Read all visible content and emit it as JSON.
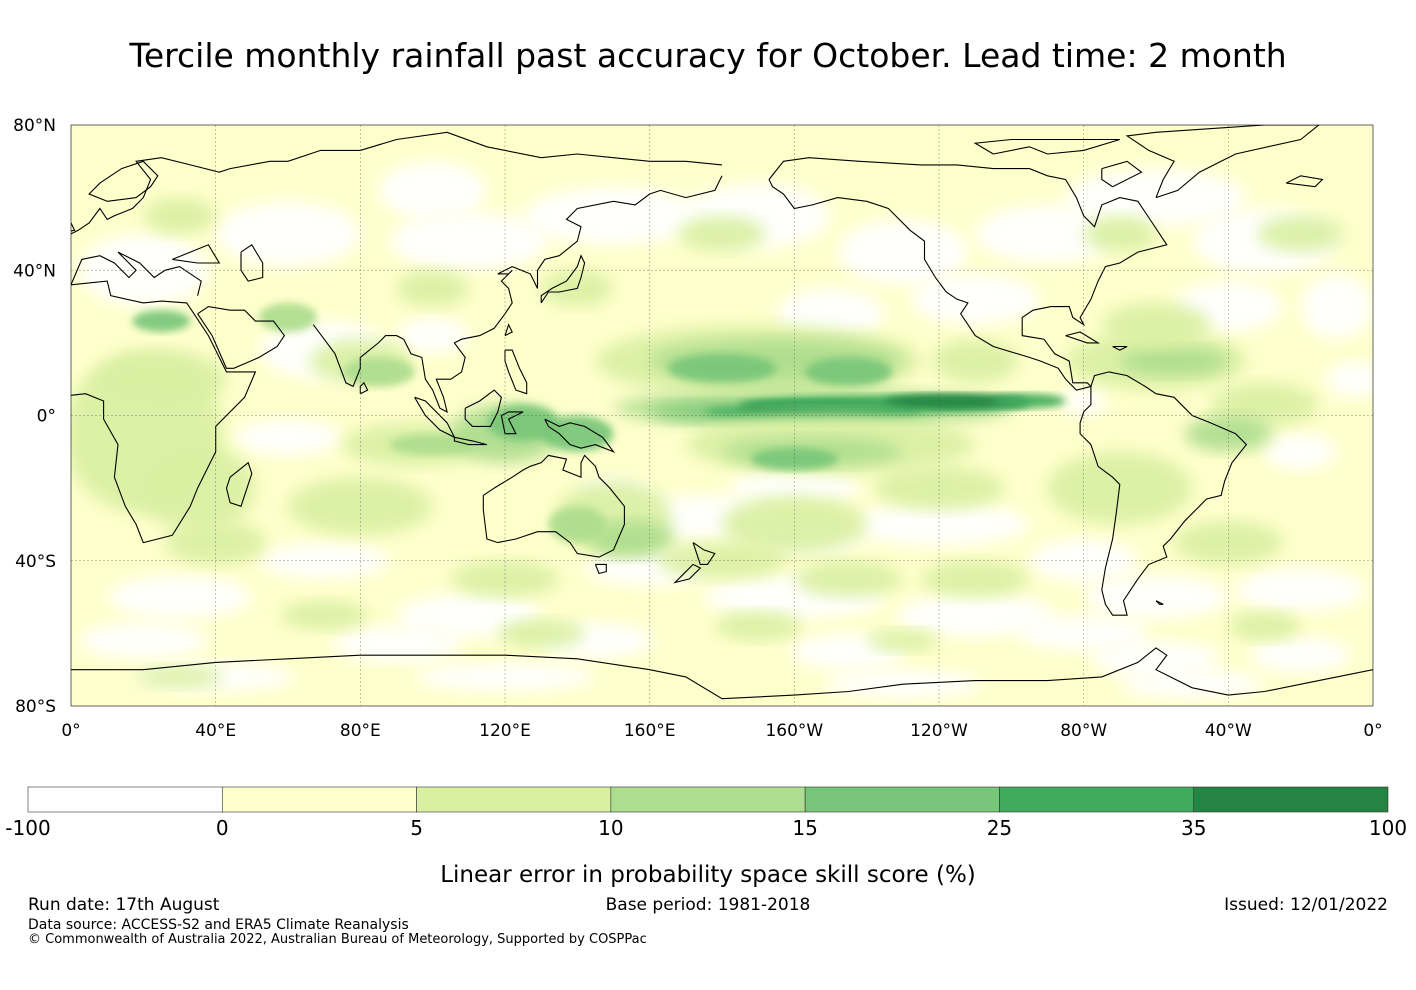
{
  "title": "Tercile monthly rainfall past accuracy for October. Lead time: 2 month",
  "map": {
    "lat_ticks": [
      "80°N",
      "40°N",
      "0°",
      "40°S",
      "80°S"
    ],
    "lon_ticks": [
      "0°",
      "40°E",
      "80°E",
      "120°E",
      "160°E",
      "160°W",
      "120°W",
      "80°W",
      "40°W",
      "0°"
    ],
    "lat_range": [
      -80,
      80
    ],
    "lon_range": [
      0,
      360
    ],
    "grid": true
  },
  "colorbar": {
    "boundaries": [
      "-100",
      "0",
      "5",
      "10",
      "15",
      "25",
      "35",
      "100"
    ],
    "colors": [
      "#ffffff",
      "#ffffcc",
      "#d9f0a3",
      "#addd8e",
      "#78c679",
      "#41ab5d",
      "#238443"
    ],
    "label": "Linear error in probability space skill score (%)"
  },
  "footer": {
    "run_date": "Run date: 17th August",
    "base_period": "Base period: 1981-2018",
    "issued": "Issued: 12/01/2022",
    "data_source": "Data source: ACCESS-S2 and ERA5 Climate Reanalysis",
    "copyright": "© Commonwealth of Australia 2022, Australian Bureau of Meteorology, Supported by COSPPac"
  }
}
